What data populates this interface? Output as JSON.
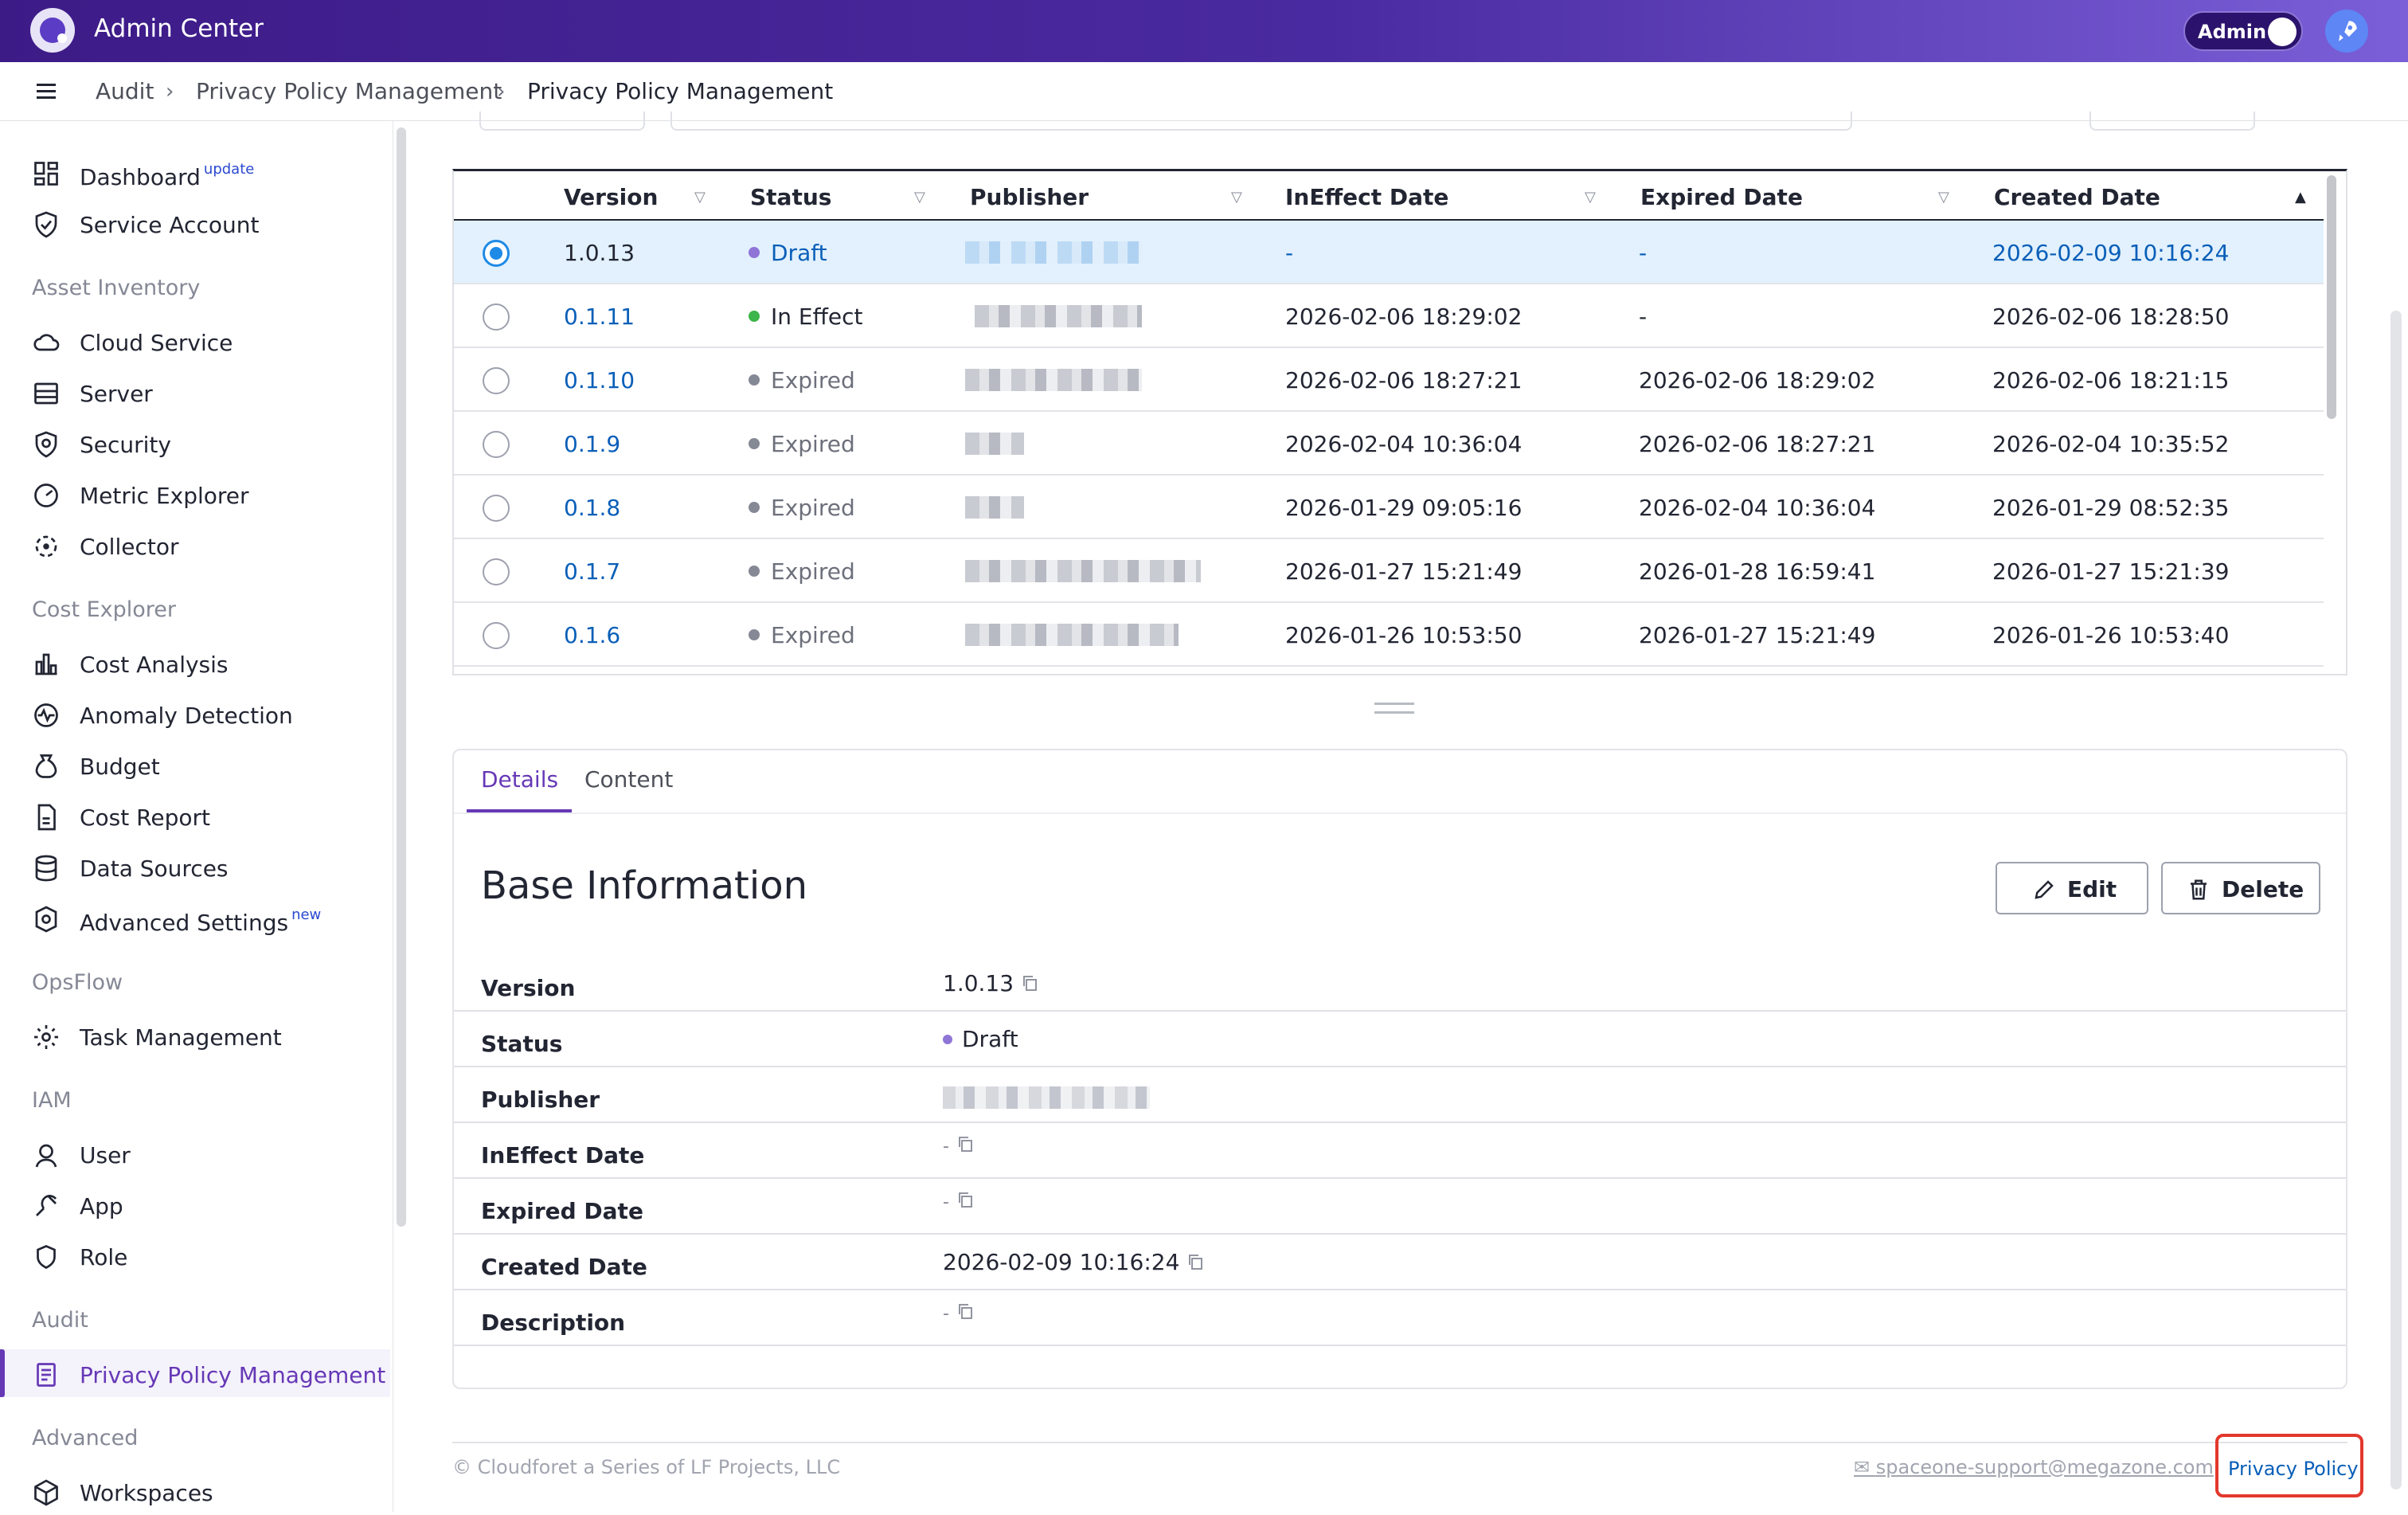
{
  "app": {
    "title": "Admin Center",
    "mode_label": "Admin"
  },
  "breadcrumb": [
    "Audit",
    "Privacy Policy Management",
    "Privacy Policy Management"
  ],
  "sidebar": {
    "items_top": [
      {
        "label": "Dashboard",
        "badge": "update"
      },
      {
        "label": "Service Account"
      }
    ],
    "sections": [
      {
        "title": "Asset Inventory",
        "items": [
          "Cloud Service",
          "Server",
          "Security",
          "Metric Explorer",
          "Collector"
        ]
      },
      {
        "title": "Cost Explorer",
        "items": [
          "Cost Analysis",
          "Anomaly Detection",
          "Budget",
          "Cost Report",
          "Data Sources",
          "Advanced Settings"
        ],
        "advanced_badge": "new"
      },
      {
        "title": "OpsFlow",
        "items": [
          "Task Management"
        ]
      },
      {
        "title": "IAM",
        "items": [
          "User",
          "App",
          "Role"
        ]
      },
      {
        "title": "Audit",
        "items": [
          "Privacy Policy Management"
        ]
      },
      {
        "title": "Advanced",
        "items": [
          "Workspaces"
        ]
      }
    ]
  },
  "table": {
    "columns": [
      "Version",
      "Status",
      "Publisher",
      "InEffect Date",
      "Expired Date",
      "Created Date"
    ],
    "rows": [
      {
        "version": "1.0.13",
        "status": "Draft",
        "ineffect": "-",
        "expired": "-",
        "created": "2026-02-09 10:16:24",
        "selected": true
      },
      {
        "version": "0.1.11",
        "status": "In Effect",
        "ineffect": "2026-02-06 18:29:02",
        "expired": "-",
        "created": "2026-02-06 18:28:50"
      },
      {
        "version": "0.1.10",
        "status": "Expired",
        "ineffect": "2026-02-06 18:27:21",
        "expired": "2026-02-06 18:29:02",
        "created": "2026-02-06 18:21:15"
      },
      {
        "version": "0.1.9",
        "status": "Expired",
        "ineffect": "2026-02-04 10:36:04",
        "expired": "2026-02-06 18:27:21",
        "created": "2026-02-04 10:35:52"
      },
      {
        "version": "0.1.8",
        "status": "Expired",
        "ineffect": "2026-01-29 09:05:16",
        "expired": "2026-02-04 10:36:04",
        "created": "2026-01-29 08:52:35"
      },
      {
        "version": "0.1.7",
        "status": "Expired",
        "ineffect": "2026-01-27 15:21:49",
        "expired": "2026-01-28 16:59:41",
        "created": "2026-01-27 15:21:39"
      },
      {
        "version": "0.1.6",
        "status": "Expired",
        "ineffect": "2026-01-26 10:53:50",
        "expired": "2026-01-27 15:21:49",
        "created": "2026-01-26 10:53:40"
      }
    ]
  },
  "detail": {
    "tabs": [
      "Details",
      "Content"
    ],
    "title": "Base Information",
    "edit_label": "Edit",
    "delete_label": "Delete",
    "fields": [
      {
        "label": "Version",
        "value": "1.0.13"
      },
      {
        "label": "Status",
        "value": "Draft"
      },
      {
        "label": "Publisher",
        "value": ""
      },
      {
        "label": "InEffect Date",
        "value": "-"
      },
      {
        "label": "Expired Date",
        "value": "-"
      },
      {
        "label": "Created Date",
        "value": "2026-02-09 10:16:24"
      },
      {
        "label": "Description",
        "value": "-"
      }
    ]
  },
  "footer": {
    "copyright": "© Cloudforet a Series of LF Projects, LLC",
    "email": "spaceone-support@megazone.com",
    "privacy_link": "Privacy Policy"
  },
  "colors": {
    "accent": "#6638b6",
    "link": "#0a5fb8",
    "draft": "#8f75d6",
    "in_effect": "#3cb54a",
    "expired": "#858895",
    "highlight": "#e3382d"
  }
}
